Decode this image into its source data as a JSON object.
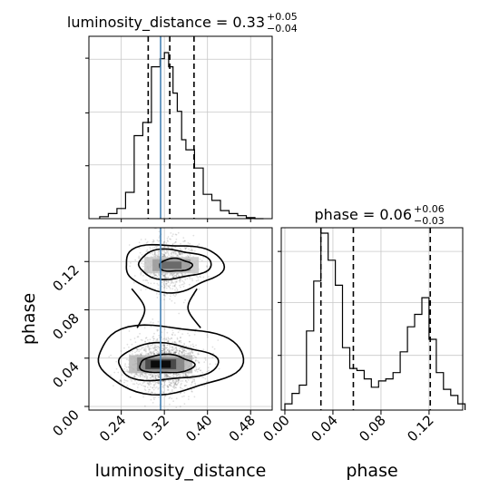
{
  "chart_data": {
    "type": "corner",
    "parameters": [
      "luminosity_distance",
      "phase"
    ],
    "axis_labels": {
      "luminosity_distance": "luminosity_distance",
      "phase": "phase"
    },
    "titles": {
      "luminosity_distance": {
        "name": "luminosity_distance",
        "value": "0.33",
        "plus": "+0.05",
        "minus": "−0.04"
      },
      "phase": {
        "name": "phase",
        "value": "0.06",
        "plus": "+0.06",
        "minus": "−0.03"
      }
    },
    "truth": {
      "luminosity_distance": 0.313,
      "phase": null
    },
    "ranges": {
      "luminosity_distance": [
        0.18,
        0.52
      ],
      "phase": [
        -0.003,
        0.148
      ]
    },
    "ticks": {
      "luminosity_distance": [
        "0.24",
        "0.32",
        "0.40",
        "0.48"
      ],
      "phase": [
        "0.00",
        "0.04",
        "0.08",
        "0.12"
      ]
    },
    "grid": true,
    "hist_luminosity_distance": {
      "bin_edges": [
        0.2,
        0.216,
        0.232,
        0.248,
        0.264,
        0.28,
        0.296,
        0.312,
        0.32,
        0.328,
        0.336,
        0.344,
        0.352,
        0.36,
        0.376,
        0.392,
        0.408,
        0.424,
        0.44,
        0.456,
        0.472,
        0.488,
        0.504
      ],
      "counts": [
        2,
        5,
        10,
        26,
        82,
        95,
        150,
        158,
        164,
        150,
        124,
        106,
        78,
        68,
        50,
        24,
        18,
        8,
        5,
        3,
        1,
        0
      ],
      "quantile_lines": [
        0.29,
        0.33,
        0.375
      ]
    },
    "hist_phase": {
      "bin_edges": [
        0.0,
        0.006,
        0.012,
        0.018,
        0.024,
        0.03,
        0.036,
        0.042,
        0.048,
        0.054,
        0.06,
        0.066,
        0.072,
        0.078,
        0.084,
        0.09,
        0.096,
        0.102,
        0.108,
        0.114,
        0.12,
        0.126,
        0.132,
        0.138,
        0.144,
        0.15
      ],
      "counts": [
        3,
        8,
        12,
        38,
        62,
        85,
        72,
        60,
        30,
        20,
        19,
        15,
        11,
        14,
        15,
        18,
        28,
        40,
        46,
        54,
        34,
        18,
        10,
        7,
        3
      ],
      "quantile_lines": [
        0.03,
        0.057,
        0.121
      ]
    },
    "scatter2d": {
      "x": "luminosity_distance",
      "y": "phase",
      "modes": [
        {
          "x_center": 0.32,
          "y_center": 0.035,
          "x_sigma": 0.032,
          "y_sigma": 0.0085
        },
        {
          "x_center": 0.33,
          "y_center": 0.117,
          "x_sigma": 0.026,
          "y_sigma": 0.0085
        }
      ],
      "contour_levels": 3
    }
  }
}
